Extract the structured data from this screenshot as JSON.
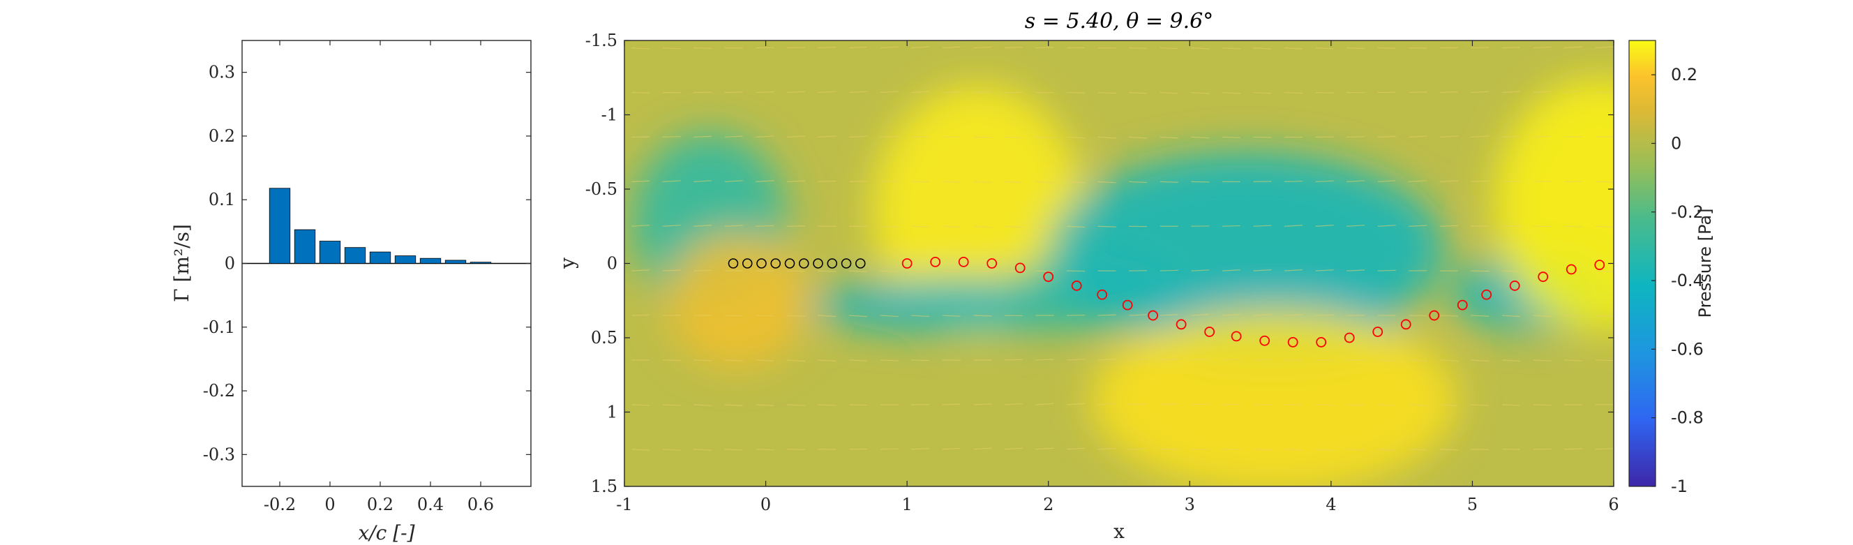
{
  "chart_data": [
    {
      "type": "bar",
      "x": [
        -0.2,
        -0.1,
        0.0,
        0.1,
        0.2,
        0.3,
        0.4,
        0.5,
        0.6
      ],
      "values": [
        0.118,
        0.053,
        0.035,
        0.025,
        0.018,
        0.012,
        0.008,
        0.005,
        0.002
      ],
      "xlim": [
        -0.35,
        0.8
      ],
      "ylim": [
        -0.35,
        0.35
      ],
      "xticks": [
        -0.2,
        0,
        0.2,
        0.4,
        0.6
      ],
      "xtick_labels": [
        "-0.2",
        "0",
        "0.2",
        "0.4",
        "0.6"
      ],
      "yticks": [
        0.3,
        0.2,
        0.1,
        0,
        -0.1,
        -0.2,
        -0.3
      ],
      "ytick_labels": [
        "0.3",
        "0.2",
        "0.1",
        "0",
        "-0.1",
        "-0.2",
        "-0.3"
      ],
      "xlabel": "x/c [-]",
      "ylabel": "Γ [m²/s]",
      "bar_color": "#0072bd"
    },
    {
      "type": "heatmap",
      "title": "s = 5.40, θ = 9.6°",
      "xlabel": "x",
      "ylabel": "y",
      "xlim": [
        -1,
        6
      ],
      "ylim": [
        -1.5,
        1.5
      ],
      "y_reversed": true,
      "xticks": [
        -1,
        0,
        1,
        2,
        3,
        4,
        5,
        6
      ],
      "xtick_labels": [
        "-1",
        "0",
        "1",
        "2",
        "3",
        "4",
        "5",
        "6"
      ],
      "yticks": [
        -1.5,
        -1,
        -0.5,
        0,
        0.5,
        1,
        1.5
      ],
      "ytick_labels": [
        "-1.5",
        "-1",
        "-0.5",
        "0",
        "0.5",
        "1",
        "1.5"
      ],
      "colorbar": {
        "label": "Pressure [Pa]",
        "range": [
          -1,
          0.3
        ],
        "ticks": [
          0.2,
          0,
          -0.2,
          -0.4,
          -0.6,
          -0.8,
          -1
        ],
        "tick_labels": [
          "0.2",
          "0",
          "-0.2",
          "-0.4",
          "-0.6",
          "-0.8",
          "-1"
        ]
      },
      "markers_black": {
        "x": [
          -0.23,
          -0.13,
          -0.03,
          0.07,
          0.17,
          0.27,
          0.37,
          0.47,
          0.57,
          0.67
        ],
        "y": [
          0,
          0,
          0,
          0,
          0,
          0,
          0,
          0,
          0,
          0
        ],
        "color": "#000000"
      },
      "markers_red": {
        "x": [
          1.0,
          1.2,
          1.4,
          1.6,
          1.8,
          2.0,
          2.2,
          2.38,
          2.56,
          2.74,
          2.94,
          3.14,
          3.33,
          3.53,
          3.73,
          3.93,
          4.13,
          4.33,
          4.53,
          4.73,
          4.93,
          5.1,
          5.3,
          5.5,
          5.7,
          5.9
        ],
        "y": [
          0.0,
          -0.01,
          -0.01,
          0.0,
          0.03,
          0.09,
          0.15,
          0.21,
          0.28,
          0.35,
          0.41,
          0.46,
          0.49,
          0.52,
          0.53,
          0.53,
          0.5,
          0.46,
          0.41,
          0.35,
          0.28,
          0.21,
          0.15,
          0.09,
          0.04,
          0.01
        ],
        "color": "#ff0000"
      },
      "pressure_blobs": [
        {
          "x": -0.4,
          "y": -0.28,
          "rx": 0.55,
          "ry": 0.6,
          "p": -0.3
        },
        {
          "x": -0.2,
          "y": 0.25,
          "rx": 0.5,
          "ry": 0.45,
          "p": 0.16
        },
        {
          "x": 1.5,
          "y": -0.35,
          "rx": 0.75,
          "ry": 0.85,
          "p": 0.27
        },
        {
          "x": 1.4,
          "y": 0.28,
          "rx": 1.1,
          "ry": 0.18,
          "p": -0.42
        },
        {
          "x": 2.3,
          "y": 0.2,
          "rx": 0.6,
          "ry": 0.25,
          "p": -0.3
        },
        {
          "x": 3.4,
          "y": -0.1,
          "rx": 1.4,
          "ry": 0.65,
          "p": -0.38
        },
        {
          "x": 3.6,
          "y": 0.4,
          "rx": 0.9,
          "ry": 0.25,
          "p": -0.45
        },
        {
          "x": 3.6,
          "y": 0.92,
          "rx": 1.3,
          "ry": 0.62,
          "p": 0.25
        },
        {
          "x": 5.45,
          "y": 0.2,
          "rx": 0.6,
          "ry": 0.25,
          "p": -0.4
        },
        {
          "x": 5.9,
          "y": -0.4,
          "rx": 0.75,
          "ry": 0.85,
          "p": 0.28
        }
      ]
    }
  ]
}
